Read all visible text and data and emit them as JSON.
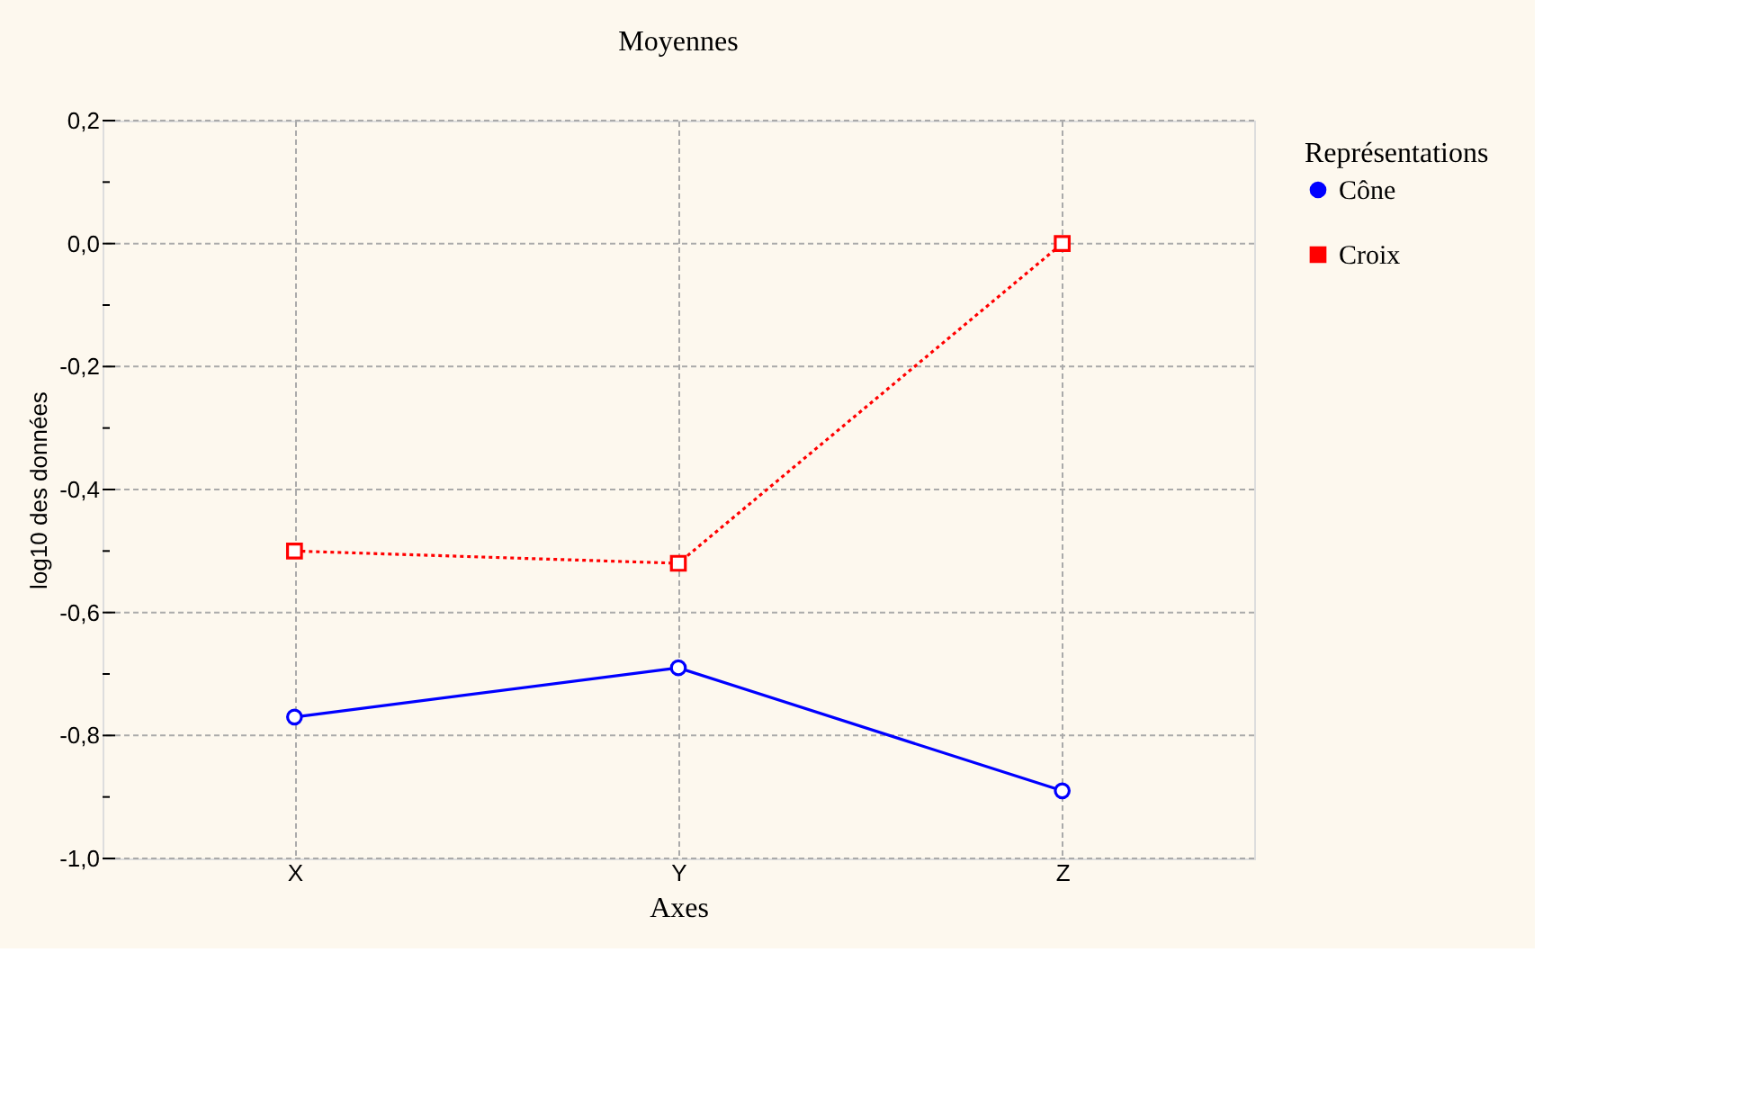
{
  "chart_data": {
    "type": "line",
    "title": "Moyennes",
    "xlabel": "Axes",
    "ylabel": "log10 des données",
    "legend_title": "Représentations",
    "categories": [
      "X",
      "Y",
      "Z"
    ],
    "series": [
      {
        "name": "Cône",
        "color": "#0000ff",
        "values": [
          -0.77,
          -0.69,
          -0.89
        ],
        "marker": "circle",
        "line_style": "solid"
      },
      {
        "name": "Croix",
        "color": "#ff0000",
        "values": [
          -0.5,
          -0.52,
          0.0
        ],
        "marker": "square",
        "line_style": "dotted"
      }
    ],
    "ylim": [
      -1.0,
      0.2
    ],
    "yticks": [
      {
        "value": -1.0,
        "label": "-1,0"
      },
      {
        "value": -0.9,
        "label": null
      },
      {
        "value": -0.8,
        "label": "-0,8"
      },
      {
        "value": -0.7,
        "label": null
      },
      {
        "value": -0.6,
        "label": "-0,6"
      },
      {
        "value": -0.5,
        "label": null
      },
      {
        "value": -0.4,
        "label": "-0,4"
      },
      {
        "value": -0.3,
        "label": null
      },
      {
        "value": -0.2,
        "label": "-0,2"
      },
      {
        "value": -0.1,
        "label": null
      },
      {
        "value": 0.0,
        "label": "0,0"
      },
      {
        "value": 0.1,
        "label": null
      },
      {
        "value": 0.2,
        "label": "0,2"
      }
    ],
    "grid": true,
    "legend": "right"
  }
}
